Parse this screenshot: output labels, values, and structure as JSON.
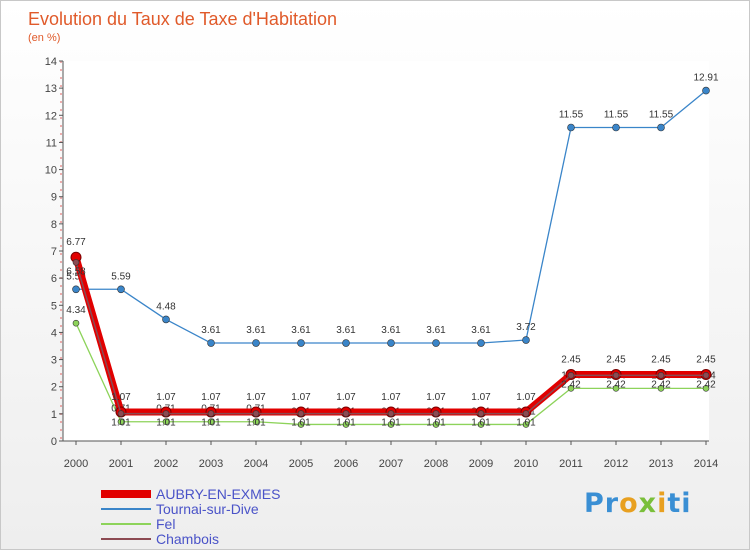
{
  "chart_data": {
    "type": "line",
    "title": "Evolution du Taux de Taxe d'Habitation",
    "subtitle": "(en %)",
    "x": [
      "2000",
      "2001",
      "2002",
      "2003",
      "2004",
      "2005",
      "2006",
      "2007",
      "2008",
      "2009",
      "2010",
      "2011",
      "2012",
      "2013",
      "2014"
    ],
    "yticks": [
      "0",
      "1",
      "2",
      "3",
      "4",
      "5",
      "6",
      "7",
      "8",
      "9",
      "10",
      "11",
      "12",
      "13",
      "14"
    ],
    "ylim": [
      0,
      14
    ],
    "series": [
      {
        "name": "AUBRY-EN-EXMES",
        "color": "#e10000",
        "values": [
          6.77,
          1.07,
          1.07,
          1.07,
          1.07,
          1.07,
          1.07,
          1.07,
          1.07,
          1.07,
          1.07,
          2.45,
          2.45,
          2.45,
          2.45
        ],
        "labels": [
          "6.77",
          "1.07",
          "1.07",
          "1.07",
          "1.07",
          "1.07",
          "1.07",
          "1.07",
          "1.07",
          "1.07",
          "1.07",
          "2.45",
          "2.45",
          "2.45",
          "2.45"
        ]
      },
      {
        "name": "Tournai-sur-Dive",
        "color": "#3a85c9",
        "values": [
          5.59,
          5.59,
          4.48,
          3.61,
          3.61,
          3.61,
          3.61,
          3.61,
          3.61,
          3.61,
          3.72,
          11.55,
          11.55,
          11.55,
          12.91
        ],
        "labels": [
          "5.59",
          "5.59",
          "4.48",
          "3.61",
          "3.61",
          "3.61",
          "3.61",
          "3.61",
          "3.61",
          "3.61",
          "3.72",
          "11.55",
          "11.55",
          "11.55",
          "12.91"
        ]
      },
      {
        "name": "Fel",
        "color": "#8dd35a",
        "values": [
          4.34,
          0.71,
          0.71,
          0.71,
          0.71,
          0.61,
          0.61,
          0.61,
          0.61,
          0.61,
          0.61,
          1.94,
          1.94,
          1.94,
          1.94
        ],
        "labels": [
          "4.34",
          "0.71",
          "0.71",
          "0.71",
          "0.71",
          "0.61",
          "0.61",
          "0.61",
          "0.61",
          "0.61",
          "0.61",
          "1.94",
          "1.94",
          "1.94",
          "1.94"
        ]
      },
      {
        "name": "Chambois",
        "color": "#8c4a52",
        "values": [
          6.58,
          1.01,
          1.01,
          1.01,
          1.01,
          1.01,
          1.01,
          1.01,
          1.01,
          1.01,
          1.01,
          2.42,
          2.42,
          2.42,
          2.42
        ],
        "labels": [
          "6.58",
          "1.01",
          "1.01",
          "1.01",
          "1.01",
          "1.01",
          "1.01",
          "1.01",
          "1.01",
          "1.01",
          "1.01",
          "2.42",
          "2.42",
          "2.42",
          "2.42"
        ]
      }
    ],
    "legend": [
      "AUBRY-EN-EXMES",
      "Tournai-sur-Dive",
      "Fel",
      "Chambois"
    ]
  },
  "logo": {
    "p1": "Pr",
    "p2": "o",
    "p3": "x",
    "p4": "i",
    "p5": "ti"
  }
}
